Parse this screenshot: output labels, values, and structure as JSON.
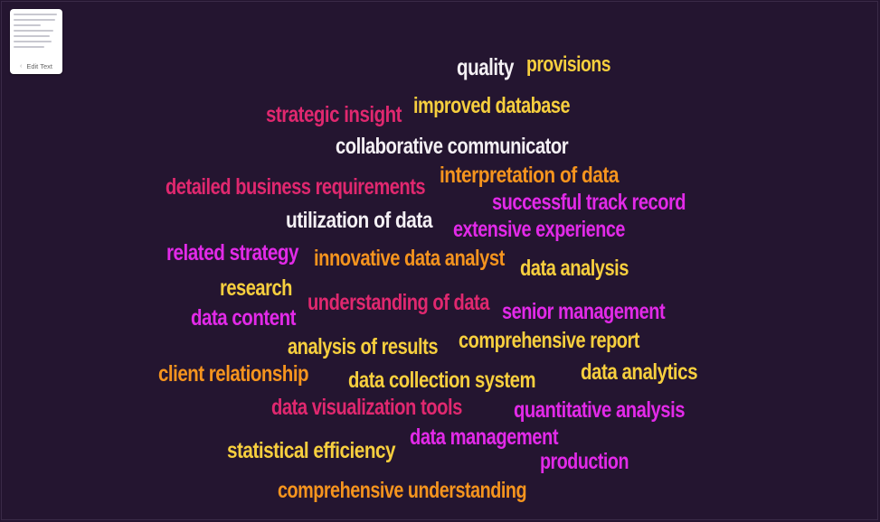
{
  "edit_button": {
    "label": "Edit Text"
  },
  "colors": {
    "background": "#241530",
    "white": "#f4f0f4",
    "yellow": "#f7cf3e",
    "orange": "#f5941e",
    "pink": "#e0286f",
    "magenta": "#e22ae8"
  },
  "words": [
    {
      "id": "quality",
      "text": "quality",
      "color": "white"
    },
    {
      "id": "provisions",
      "text": "provisions",
      "color": "yellow"
    },
    {
      "id": "strategic-insight",
      "text": "strategic insight",
      "color": "pink"
    },
    {
      "id": "improved-database",
      "text": "improved database",
      "color": "yellow"
    },
    {
      "id": "collaborative-communicator",
      "text": "collaborative communicator",
      "color": "white"
    },
    {
      "id": "detailed-business-requirements",
      "text": "detailed business requirements",
      "color": "pink"
    },
    {
      "id": "interpretation-of-data",
      "text": "interpretation of data",
      "color": "orange"
    },
    {
      "id": "successful-track-record",
      "text": "successful track record",
      "color": "magenta"
    },
    {
      "id": "utilization-of-data",
      "text": "utilization of data",
      "color": "white"
    },
    {
      "id": "extensive-experience",
      "text": "extensive experience",
      "color": "magenta"
    },
    {
      "id": "related-strategy",
      "text": "related strategy",
      "color": "magenta"
    },
    {
      "id": "innovative-data-analyst",
      "text": "innovative data analyst",
      "color": "orange"
    },
    {
      "id": "data-analysis",
      "text": "data analysis",
      "color": "yellow"
    },
    {
      "id": "research",
      "text": "research",
      "color": "yellow"
    },
    {
      "id": "understanding-of-data",
      "text": "understanding of data",
      "color": "pink"
    },
    {
      "id": "data-content",
      "text": "data content",
      "color": "magenta"
    },
    {
      "id": "senior-management",
      "text": "senior management",
      "color": "magenta"
    },
    {
      "id": "analysis-of-results",
      "text": "analysis of results",
      "color": "yellow"
    },
    {
      "id": "comprehensive-report",
      "text": "comprehensive report",
      "color": "yellow"
    },
    {
      "id": "client-relationship",
      "text": "client relationship",
      "color": "orange"
    },
    {
      "id": "data-collection-system",
      "text": "data collection system",
      "color": "yellow"
    },
    {
      "id": "data-analytics",
      "text": "data analytics",
      "color": "yellow"
    },
    {
      "id": "data-visualization-tools",
      "text": "data visualization tools",
      "color": "pink"
    },
    {
      "id": "quantitative-analysis",
      "text": "quantitative analysis",
      "color": "magenta"
    },
    {
      "id": "data-management",
      "text": "data management",
      "color": "magenta"
    },
    {
      "id": "statistical-efficiency",
      "text": "statistical efficiency",
      "color": "yellow"
    },
    {
      "id": "production",
      "text": "production",
      "color": "magenta"
    },
    {
      "id": "comprehensive-understanding",
      "text": "comprehensive understanding",
      "color": "orange"
    }
  ]
}
